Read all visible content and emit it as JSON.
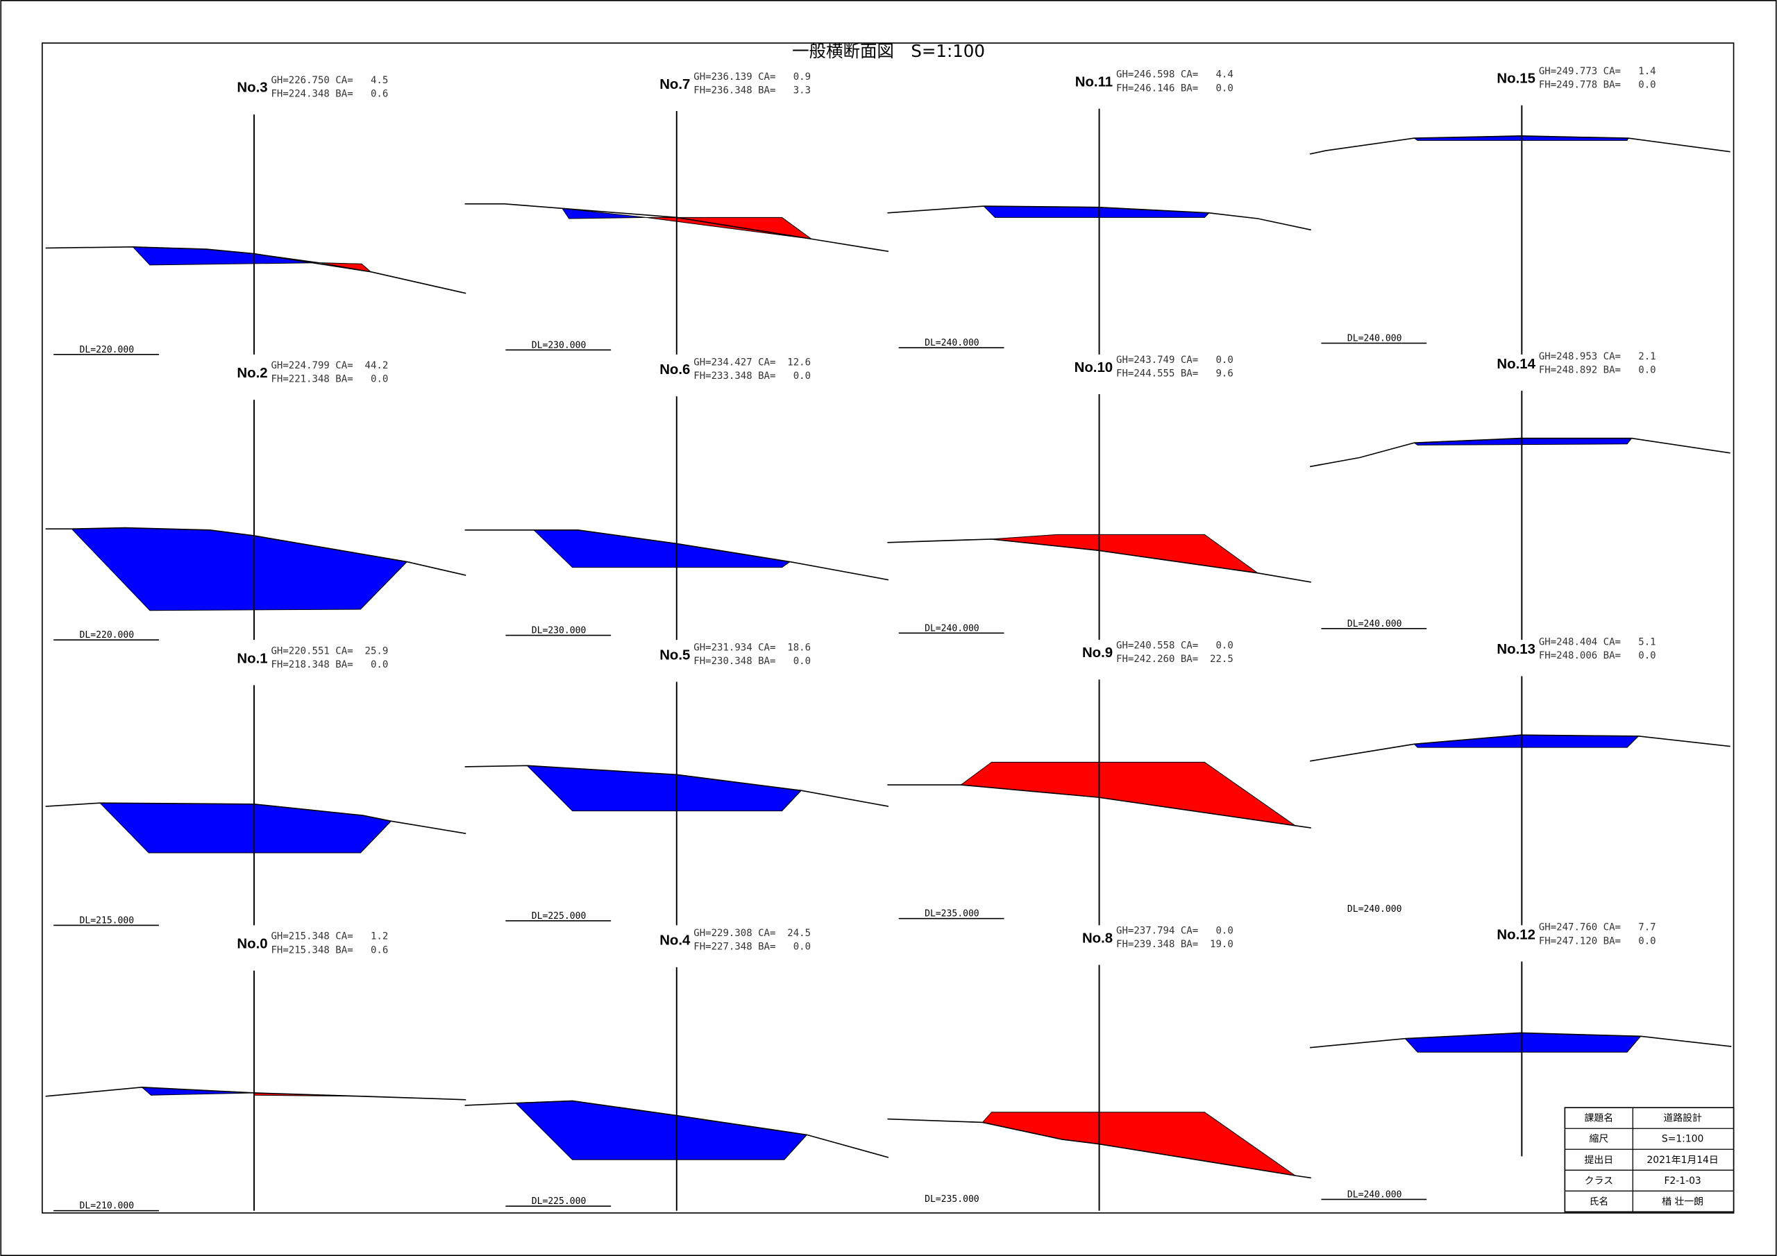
{
  "title": "一般横断面図　S=1:100",
  "sections": [
    {
      "station": "No.3",
      "gh_line": "GH=226.750 CA=   4.5",
      "fh_line": "FH=224.348 BA=   0.6",
      "datum": "DL=220.000"
    },
    {
      "station": "No.2",
      "gh_line": "GH=224.799 CA=  44.2",
      "fh_line": "FH=221.348 BA=   0.0",
      "datum": "DL=220.000"
    },
    {
      "station": "No.1",
      "gh_line": "GH=220.551 CA=  25.9",
      "fh_line": "FH=218.348 BA=   0.0",
      "datum": "DL=215.000"
    },
    {
      "station": "No.0",
      "gh_line": "GH=215.348 CA=   1.2",
      "fh_line": "FH=215.348 BA=   0.6",
      "datum": "DL=210.000"
    },
    {
      "station": "No.7",
      "gh_line": "GH=236.139 CA=   0.9",
      "fh_line": "FH=236.348 BA=   3.3",
      "datum": "DL=230.000"
    },
    {
      "station": "No.6",
      "gh_line": "GH=234.427 CA=  12.6",
      "fh_line": "FH=233.348 BA=   0.0",
      "datum": "DL=230.000"
    },
    {
      "station": "No.5",
      "gh_line": "GH=231.934 CA=  18.6",
      "fh_line": "FH=230.348 BA=   0.0",
      "datum": "DL=225.000"
    },
    {
      "station": "No.4",
      "gh_line": "GH=229.308 CA=  24.5",
      "fh_line": "FH=227.348 BA=   0.0",
      "datum": "DL=225.000"
    },
    {
      "station": "No.11",
      "gh_line": "GH=246.598 CA=   4.4",
      "fh_line": "FH=246.146 BA=   0.0",
      "datum": "DL=240.000"
    },
    {
      "station": "No.10",
      "gh_line": "GH=243.749 CA=   0.0",
      "fh_line": "FH=244.555 BA=   9.6",
      "datum": "DL=240.000"
    },
    {
      "station": "No.9",
      "gh_line": "GH=240.558 CA=   0.0",
      "fh_line": "FH=242.260 BA=  22.5",
      "datum": "DL=235.000"
    },
    {
      "station": "No.8",
      "gh_line": "GH=237.794 CA=   0.0",
      "fh_line": "FH=239.348 BA=  19.0",
      "datum": "DL=235.000"
    },
    {
      "station": "No.15",
      "gh_line": "GH=249.773 CA=   1.4",
      "fh_line": "FH=249.778 BA=   0.0",
      "datum": "DL=240.000"
    },
    {
      "station": "No.14",
      "gh_line": "GH=248.953 CA=   2.1",
      "fh_line": "FH=248.892 BA=   0.0",
      "datum": "DL=240.000"
    },
    {
      "station": "No.13",
      "gh_line": "GH=248.404 CA=   5.1",
      "fh_line": "FH=248.006 BA=   0.0",
      "datum": "DL=240.000"
    },
    {
      "station": "No.12",
      "gh_line": "GH=247.760 CA=   7.7",
      "fh_line": "FH=247.120 BA=   0.0",
      "datum": "DL=240.000"
    }
  ],
  "title_block": {
    "rows": [
      [
        "課題名",
        "道路設計"
      ],
      [
        "縮尺",
        "S=1:100"
      ],
      [
        "提出日",
        "2021年1月14日"
      ],
      [
        "クラス",
        "F2-1-03"
      ],
      [
        "氏名",
        "楢 壮一朗"
      ]
    ]
  }
}
